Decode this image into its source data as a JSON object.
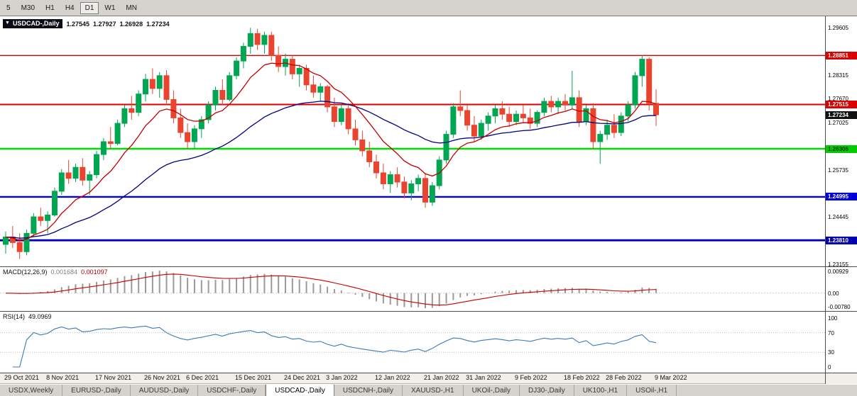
{
  "toolbar": {
    "periods": [
      {
        "label": "5",
        "active": false
      },
      {
        "label": "M30",
        "active": false
      },
      {
        "label": "H1",
        "active": false
      },
      {
        "label": "H4",
        "active": false
      },
      {
        "label": "D1",
        "active": true
      },
      {
        "label": "W1",
        "active": false
      },
      {
        "label": "MN",
        "active": false
      }
    ]
  },
  "legend": {
    "symbol": "USDCAD-,Daily",
    "open": "1.27545",
    "high": "1.27927",
    "low": "1.26928",
    "close": "1.27234"
  },
  "macd": {
    "label": "MACD(12,26,9)",
    "value_main": "0.001684",
    "value_signal": "0.001097",
    "axis_top": "0.00929",
    "axis_zero": "0.00",
    "axis_bottom": "-0.00780"
  },
  "rsi": {
    "label": "RSI(14)",
    "value": "49.0969",
    "axis": [
      100,
      70,
      30,
      0
    ],
    "levels": [
      70,
      30
    ]
  },
  "price_axis": {
    "ticks": [
      "1.29605",
      "1.28315",
      "1.27670",
      "1.27025",
      "1.25735",
      "1.24445",
      "1.23155"
    ],
    "badges": [
      {
        "price": 1.28851,
        "label": "1.28851",
        "bg": "#dc0000",
        "fg": "#ffffff"
      },
      {
        "price": 1.27515,
        "label": "1.27515",
        "bg": "#dc0000",
        "fg": "#ffffff"
      },
      {
        "price": 1.27234,
        "label": "1.27234",
        "bg": "#111111",
        "fg": "#ffffff"
      },
      {
        "price": 1.26306,
        "label": "1.26306",
        "bg": "#00cc00",
        "fg": "#003300"
      },
      {
        "price": 1.24995,
        "label": "1.24995",
        "bg": "#0000dd",
        "fg": "#ffffff"
      },
      {
        "price": 1.2381,
        "label": "1.23810",
        "bg": "#0000b0",
        "fg": "#ffffff"
      }
    ]
  },
  "chart_data": {
    "type": "candlestick",
    "symbol": "USDCAD",
    "timeframe": "Daily",
    "y_range": [
      1.2308,
      1.2992
    ],
    "colors": {
      "bull": "#00a651",
      "bear": "#e8442f",
      "ma_fast": "#c40000",
      "ma_slow": "#000080",
      "macd_hist": "#9a9a9a",
      "macd_signal": "#c40000",
      "rsi_line": "#3d7ab5"
    },
    "mas": [
      {
        "period": 10,
        "color": "#c40000"
      },
      {
        "period": 34,
        "color": "#000080"
      }
    ],
    "hlines": [
      {
        "price": 1.28851,
        "color": "#dc0000",
        "w": 1.4
      },
      {
        "price": 1.27515,
        "color": "#dc0000",
        "w": 2
      },
      {
        "price": 1.26306,
        "color": "#00dd00",
        "w": 2.4
      },
      {
        "price": 1.24995,
        "color": "#0000e0",
        "w": 2.4
      },
      {
        "price": 1.2381,
        "color": "#0000b0",
        "w": 2.8
      }
    ],
    "date_labels": [
      {
        "i": 0,
        "label": "29 Oct 2021"
      },
      {
        "i": 6,
        "label": "8 Nov 2021"
      },
      {
        "i": 13,
        "label": "17 Nov 2021"
      },
      {
        "i": 20,
        "label": "26 Nov 2021"
      },
      {
        "i": 26,
        "label": "6 Dec 2021"
      },
      {
        "i": 33,
        "label": "15 Dec 2021"
      },
      {
        "i": 40,
        "label": "24 Dec 2021"
      },
      {
        "i": 46,
        "label": "3 Jan 2022"
      },
      {
        "i": 53,
        "label": "12 Jan 2022"
      },
      {
        "i": 60,
        "label": "21 Jan 2022"
      },
      {
        "i": 66,
        "label": "31 Jan 2022"
      },
      {
        "i": 73,
        "label": "9 Feb 2022"
      },
      {
        "i": 80,
        "label": "18 Feb 2022"
      },
      {
        "i": 86,
        "label": "28 Feb 2022"
      },
      {
        "i": 93,
        "label": "9 Mar 2022"
      }
    ],
    "ohlc": [
      [
        1.237,
        1.2405,
        1.2345,
        1.239
      ],
      [
        1.239,
        1.242,
        1.236,
        1.2375
      ],
      [
        1.2375,
        1.24,
        1.233,
        1.235
      ],
      [
        1.235,
        1.241,
        1.234,
        1.24
      ],
      [
        1.24,
        1.2455,
        1.239,
        1.2445
      ],
      [
        1.2445,
        1.247,
        1.242,
        1.2435
      ],
      [
        1.2435,
        1.246,
        1.24,
        1.245
      ],
      [
        1.245,
        1.2525,
        1.2445,
        1.2515
      ],
      [
        1.2515,
        1.2575,
        1.2505,
        1.2565
      ],
      [
        1.2565,
        1.26,
        1.2535,
        1.255
      ],
      [
        1.255,
        1.259,
        1.254,
        1.258
      ],
      [
        1.258,
        1.2605,
        1.253,
        1.2545
      ],
      [
        1.2545,
        1.257,
        1.2505,
        1.256
      ],
      [
        1.256,
        1.2625,
        1.255,
        1.2615
      ],
      [
        1.2615,
        1.266,
        1.26,
        1.265
      ],
      [
        1.265,
        1.269,
        1.263,
        1.2645
      ],
      [
        1.2645,
        1.271,
        1.264,
        1.27
      ],
      [
        1.27,
        1.275,
        1.269,
        1.274
      ],
      [
        1.274,
        1.2775,
        1.271,
        1.273
      ],
      [
        1.273,
        1.279,
        1.272,
        1.278
      ],
      [
        1.278,
        1.2835,
        1.276,
        1.282
      ],
      [
        1.282,
        1.285,
        1.278,
        1.2795
      ],
      [
        1.2795,
        1.284,
        1.277,
        1.283
      ],
      [
        1.283,
        1.2845,
        1.275,
        1.2765
      ],
      [
        1.2765,
        1.279,
        1.27,
        1.2715
      ],
      [
        1.2715,
        1.274,
        1.266,
        1.2675
      ],
      [
        1.2675,
        1.27,
        1.2631,
        1.265
      ],
      [
        1.265,
        1.2695,
        1.26306,
        1.2685
      ],
      [
        1.2685,
        1.272,
        1.266,
        1.271
      ],
      [
        1.271,
        1.276,
        1.27,
        1.275
      ],
      [
        1.275,
        1.28,
        1.2735,
        1.279
      ],
      [
        1.279,
        1.282,
        1.275,
        1.2765
      ],
      [
        1.2765,
        1.284,
        1.276,
        1.283
      ],
      [
        1.283,
        1.288,
        1.282,
        1.287
      ],
      [
        1.287,
        1.292,
        1.285,
        1.291
      ],
      [
        1.291,
        1.29605,
        1.289,
        1.2945
      ],
      [
        1.2945,
        1.2958,
        1.29,
        1.2915
      ],
      [
        1.2915,
        1.295,
        1.289,
        1.294
      ],
      [
        1.294,
        1.295,
        1.287,
        1.2885
      ],
      [
        1.2885,
        1.291,
        1.284,
        1.2855
      ],
      [
        1.2855,
        1.289,
        1.283,
        1.2875
      ],
      [
        1.2875,
        1.2885,
        1.282,
        1.2835
      ],
      [
        1.2835,
        1.286,
        1.28,
        1.285
      ],
      [
        1.285,
        1.286,
        1.279,
        1.2805
      ],
      [
        1.2805,
        1.283,
        1.277,
        1.2785
      ],
      [
        1.2785,
        1.281,
        1.276,
        1.28
      ],
      [
        1.28,
        1.2805,
        1.273,
        1.2745
      ],
      [
        1.2745,
        1.277,
        1.269,
        1.2705
      ],
      [
        1.2705,
        1.275,
        1.2695,
        1.274
      ],
      [
        1.274,
        1.2755,
        1.267,
        1.2685
      ],
      [
        1.2685,
        1.271,
        1.264,
        1.2655
      ],
      [
        1.2655,
        1.268,
        1.261,
        1.2625
      ],
      [
        1.2625,
        1.265,
        1.258,
        1.2595
      ],
      [
        1.2595,
        1.2615,
        1.255,
        1.2565
      ],
      [
        1.2565,
        1.259,
        1.252,
        1.2535
      ],
      [
        1.2535,
        1.257,
        1.251,
        1.256
      ],
      [
        1.256,
        1.258,
        1.2525,
        1.254
      ],
      [
        1.254,
        1.2555,
        1.2495,
        1.251
      ],
      [
        1.251,
        1.2545,
        1.249,
        1.2535
      ],
      [
        1.2535,
        1.256,
        1.2515,
        1.255
      ],
      [
        1.255,
        1.2565,
        1.247,
        1.2485
      ],
      [
        1.2485,
        1.254,
        1.2475,
        1.253
      ],
      [
        1.253,
        1.261,
        1.252,
        1.26
      ],
      [
        1.26,
        1.268,
        1.259,
        1.267
      ],
      [
        1.267,
        1.2755,
        1.266,
        1.2745
      ],
      [
        1.2745,
        1.279,
        1.272,
        1.2735
      ],
      [
        1.2735,
        1.275,
        1.268,
        1.2695
      ],
      [
        1.2695,
        1.272,
        1.265,
        1.2665
      ],
      [
        1.2665,
        1.271,
        1.2655,
        1.27
      ],
      [
        1.27,
        1.273,
        1.268,
        1.272
      ],
      [
        1.272,
        1.275,
        1.27,
        1.274
      ],
      [
        1.274,
        1.276,
        1.271,
        1.2725
      ],
      [
        1.2725,
        1.2745,
        1.269,
        1.2705
      ],
      [
        1.2705,
        1.2735,
        1.2695,
        1.2725
      ],
      [
        1.2725,
        1.275,
        1.27,
        1.2715
      ],
      [
        1.2715,
        1.274,
        1.2685,
        1.27
      ],
      [
        1.27,
        1.2735,
        1.269,
        1.273
      ],
      [
        1.273,
        1.277,
        1.272,
        1.276
      ],
      [
        1.276,
        1.2775,
        1.273,
        1.2745
      ],
      [
        1.2745,
        1.277,
        1.2725,
        1.276
      ],
      [
        1.276,
        1.278,
        1.2735,
        1.275
      ],
      [
        1.275,
        1.2843,
        1.274,
        1.277
      ],
      [
        1.277,
        1.279,
        1.269,
        1.2705
      ],
      [
        1.2705,
        1.275,
        1.2695,
        1.274
      ],
      [
        1.274,
        1.2755,
        1.263,
        1.265
      ],
      [
        1.265,
        1.268,
        1.259,
        1.267
      ],
      [
        1.267,
        1.271,
        1.2655,
        1.2695
      ],
      [
        1.2695,
        1.2725,
        1.266,
        1.2675
      ],
      [
        1.2675,
        1.273,
        1.2665,
        1.272
      ],
      [
        1.272,
        1.276,
        1.2705,
        1.275
      ],
      [
        1.275,
        1.284,
        1.274,
        1.283
      ],
      [
        1.283,
        1.28851,
        1.28,
        1.2875
      ],
      [
        1.2875,
        1.288,
        1.2735,
        1.2755
      ],
      [
        1.27545,
        1.27927,
        1.26928,
        1.27234
      ]
    ]
  },
  "tabs": [
    {
      "label": "USDX,Weekly",
      "active": false
    },
    {
      "label": "EURUSD-,Daily",
      "active": false
    },
    {
      "label": "AUDUSD-,Daily",
      "active": false
    },
    {
      "label": "USDCHF-,Daily",
      "active": false
    },
    {
      "label": "USDCAD-,Daily",
      "active": true
    },
    {
      "label": "USDCNH-,Daily",
      "active": false
    },
    {
      "label": "XAUUSD-,H1",
      "active": false
    },
    {
      "label": "UKOil-,Daily",
      "active": false
    },
    {
      "label": "DJ30-,Daily",
      "active": false
    },
    {
      "label": "UK100-,H1",
      "active": false
    },
    {
      "label": "USOil-,H1",
      "active": false
    }
  ]
}
